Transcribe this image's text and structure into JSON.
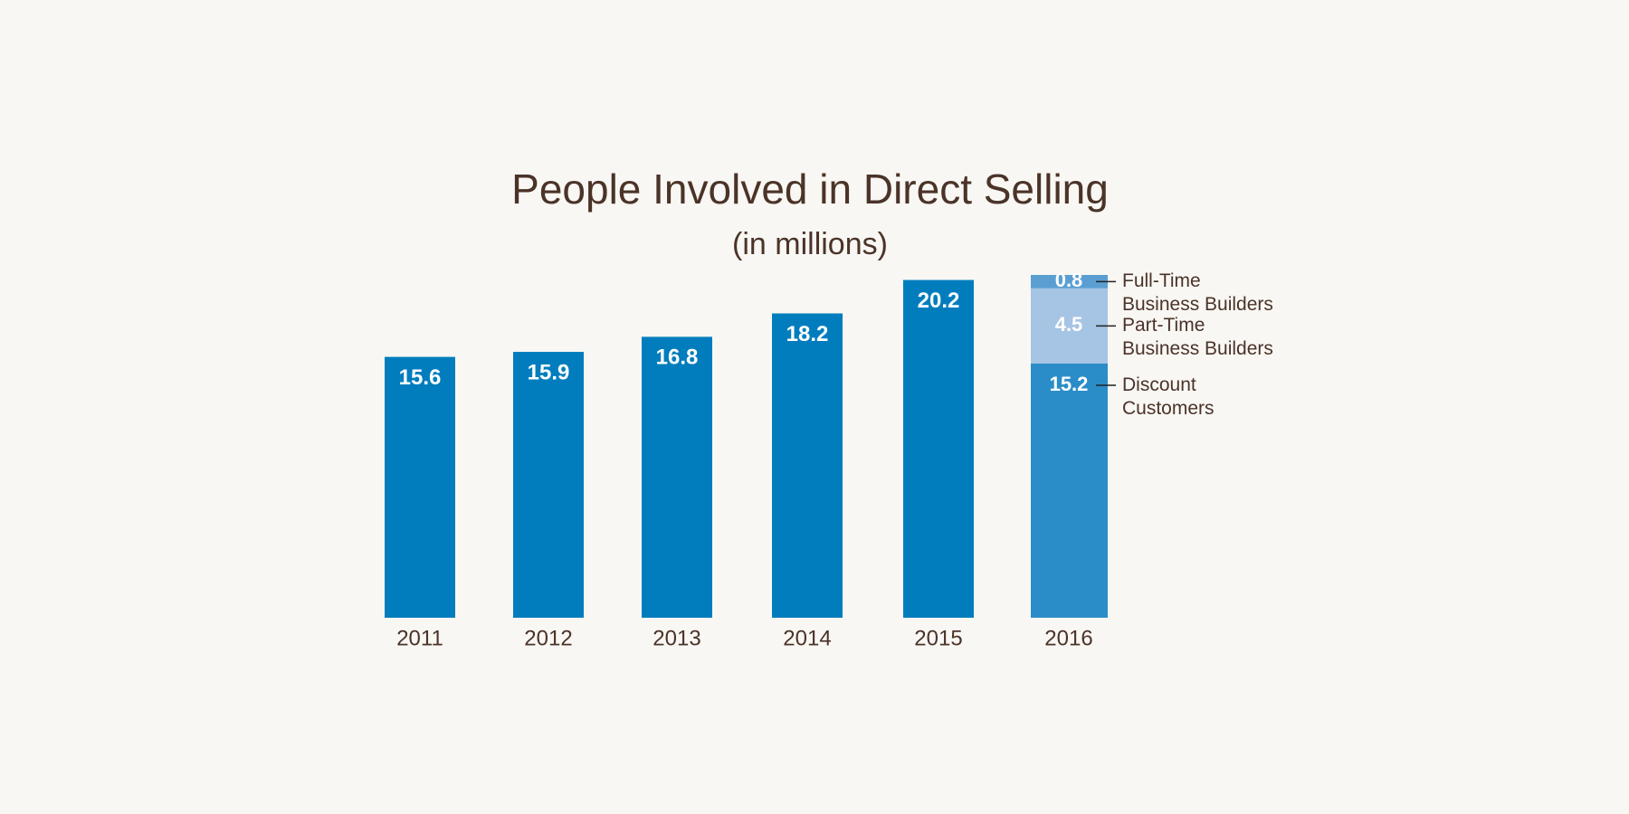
{
  "chart_data": {
    "type": "bar",
    "title": "People Involved in Direct Selling",
    "subtitle": "(in millions)",
    "categories": [
      "2011",
      "2012",
      "2013",
      "2014",
      "2015",
      "2016"
    ],
    "values": [
      15.6,
      15.9,
      16.8,
      18.2,
      20.2,
      null
    ],
    "color": "#017dbd",
    "segments": [
      {
        "name": "Discount Customers",
        "value": 15.2,
        "color": "#2b8dc8"
      },
      {
        "name": "Part-Time Business Builders",
        "value": 4.5,
        "color": "#a6c4e4"
      },
      {
        "name": "Full-Time Business Builders",
        "value": 0.8,
        "color": "#5b9fd2"
      }
    ],
    "ylim": [
      0,
      20.5
    ]
  }
}
